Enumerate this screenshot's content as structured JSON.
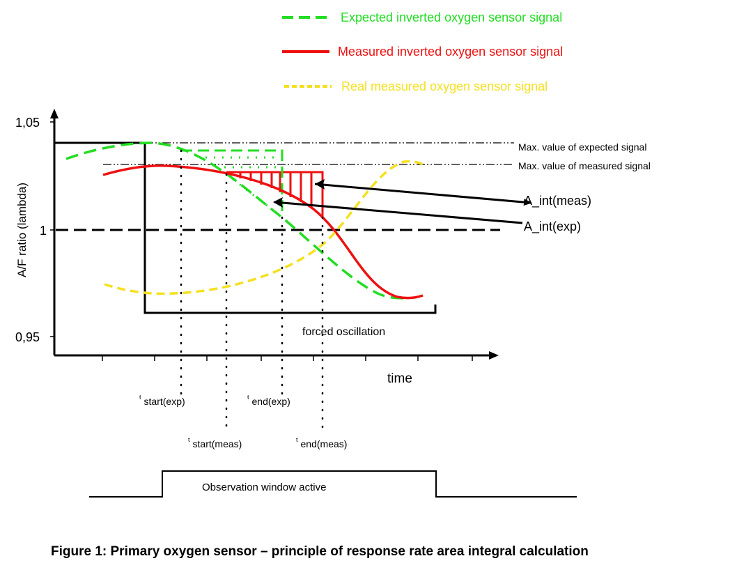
{
  "legend": [
    {
      "label": "Expected inverted oxygen sensor signal",
      "color": "#22dd22",
      "style": "dashed"
    },
    {
      "label": "Measured inverted oxygen sensor signal",
      "color": "#ee1111",
      "style": "solid"
    },
    {
      "label": "Real measured oxygen sensor signal",
      "color": "#f5e020",
      "style": "dotted"
    }
  ],
  "axes": {
    "ylabel": "A/F ratio (lambda)",
    "xlabel": "time",
    "yticks": [
      "1,05",
      "1",
      "0,95"
    ]
  },
  "annotations": {
    "max_expected": "Max. value of expected signal",
    "max_measured": "Max. value of measured signal",
    "a_int_meas": "A_int(meas)",
    "a_int_exp": "A_int(exp)",
    "forced_oscillation": "forced oscillation",
    "t_prefix": "t",
    "start_exp": "start(exp)",
    "end_exp": "end(exp)",
    "start_meas": "start(meas)",
    "end_meas": "end(meas)",
    "observation": "Observation window active"
  },
  "caption": "Figure 1: Primary oxygen sensor – principle of response rate area integral calculation"
}
